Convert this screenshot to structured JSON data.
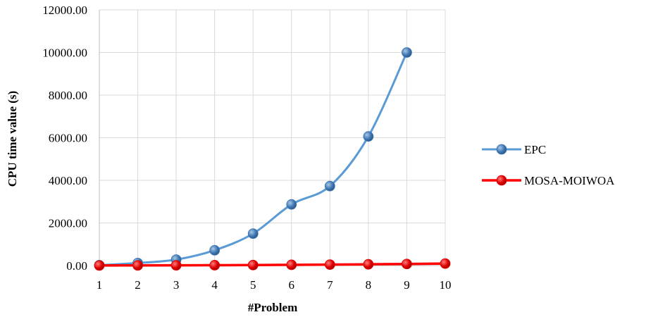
{
  "chart_data": {
    "type": "line",
    "title": "",
    "xlabel": "#Problem",
    "ylabel": "CPU time value (s)",
    "x": [
      1,
      2,
      3,
      4,
      5,
      6,
      7,
      8,
      9,
      10
    ],
    "xticks": [
      "1",
      "2",
      "3",
      "4",
      "5",
      "6",
      "7",
      "8",
      "9",
      "10"
    ],
    "ylim": [
      0,
      12000
    ],
    "yticks": [
      "0.00",
      "2000.00",
      "4000.00",
      "6000.00",
      "8000.00",
      "10000.00",
      "12000.00"
    ],
    "grid": true,
    "legend_position": "right",
    "series": [
      {
        "name": "EPC",
        "color": "#5b9bd5",
        "marker_color": "#3f77b3",
        "x": [
          1,
          2,
          3,
          4,
          5,
          6,
          7,
          8,
          9
        ],
        "values": [
          20,
          120,
          280,
          720,
          1500,
          2870,
          3730,
          6060,
          10000
        ]
      },
      {
        "name": "MOSA-MOIWOA",
        "color": "#ff0000",
        "marker_color": "#e00000",
        "x": [
          1,
          2,
          3,
          4,
          5,
          6,
          7,
          8,
          9,
          10
        ],
        "values": [
          5,
          8,
          12,
          18,
          25,
          35,
          45,
          60,
          75,
          95
        ]
      }
    ]
  }
}
